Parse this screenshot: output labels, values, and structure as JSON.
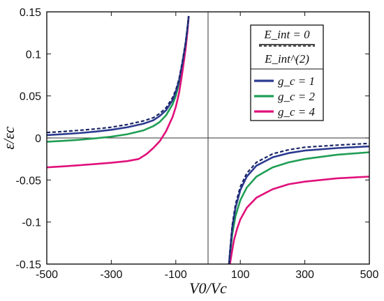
{
  "chart_data": {
    "type": "line",
    "xlabel": "V0/Vc",
    "ylabel": "ε/εc",
    "xlim": [
      -500,
      500
    ],
    "ylim": [
      -0.15,
      0.15
    ],
    "xticks": [
      -500,
      -300,
      -100,
      100,
      300,
      500
    ],
    "xtick_labels": [
      "-500",
      "-300",
      "-100",
      "100",
      "300",
      "500"
    ],
    "yticks": [
      -0.15,
      -0.1,
      -0.05,
      0,
      0.05,
      0.1,
      0.15
    ],
    "ytick_labels": [
      "-0.15",
      "-0.1",
      "-0.05",
      "0",
      "0.05",
      "0.1",
      "0.15"
    ],
    "grid": false,
    "zero_lines": true,
    "legend": {
      "placement": "top-right",
      "header": [
        {
          "style": "solid",
          "color": "#111111",
          "label": "E_int = 0"
        },
        {
          "style": "dashed",
          "color": "#111111",
          "label": "E_int^(2)"
        }
      ]
    },
    "series": [
      {
        "name": "g_c = 1",
        "color": "#2b3a8f",
        "style": "solid",
        "left": [
          [
            -500,
            0.0034
          ],
          [
            -450,
            0.0045
          ],
          [
            -400,
            0.0058
          ],
          [
            -350,
            0.0075
          ],
          [
            -300,
            0.0097
          ],
          [
            -250,
            0.0128
          ],
          [
            -200,
            0.017
          ],
          [
            -170,
            0.021
          ],
          [
            -150,
            0.026
          ],
          [
            -130,
            0.033
          ],
          [
            -110,
            0.045
          ],
          [
            -100,
            0.055
          ],
          [
            -90,
            0.068
          ],
          [
            -80,
            0.088
          ],
          [
            -70,
            0.112
          ],
          [
            -64,
            0.13
          ],
          [
            -60,
            0.145
          ]
        ],
        "right": [
          [
            65,
            -0.15
          ],
          [
            68,
            -0.136
          ],
          [
            75,
            -0.107
          ],
          [
            85,
            -0.083
          ],
          [
            100,
            -0.062
          ],
          [
            120,
            -0.046
          ],
          [
            150,
            -0.033
          ],
          [
            200,
            -0.023
          ],
          [
            250,
            -0.018
          ],
          [
            300,
            -0.015
          ],
          [
            400,
            -0.012
          ],
          [
            500,
            -0.01
          ]
        ]
      },
      {
        "name": "",
        "color": "#2b3a8f",
        "style": "dashed",
        "left": [
          [
            -500,
            0.0065
          ],
          [
            -450,
            0.0076
          ],
          [
            -400,
            0.009
          ],
          [
            -350,
            0.0107
          ],
          [
            -300,
            0.0128
          ],
          [
            -250,
            0.016
          ],
          [
            -200,
            0.0203
          ],
          [
            -170,
            0.024
          ],
          [
            -150,
            0.029
          ],
          [
            -130,
            0.036
          ],
          [
            -110,
            0.048
          ],
          [
            -100,
            0.057
          ],
          [
            -90,
            0.07
          ],
          [
            -80,
            0.09
          ],
          [
            -70,
            0.113
          ],
          [
            -64,
            0.131
          ],
          [
            -60,
            0.145
          ]
        ],
        "right": [
          [
            65,
            -0.15
          ],
          [
            68,
            -0.134
          ],
          [
            75,
            -0.104
          ],
          [
            85,
            -0.079
          ],
          [
            100,
            -0.058
          ],
          [
            120,
            -0.042
          ],
          [
            150,
            -0.029
          ],
          [
            200,
            -0.019
          ],
          [
            250,
            -0.014
          ],
          [
            300,
            -0.011
          ],
          [
            400,
            -0.0085
          ],
          [
            500,
            -0.0065
          ]
        ]
      },
      {
        "name": "g_c = 2",
        "color": "#1f9e55",
        "style": "solid",
        "left": [
          [
            -500,
            -0.0045
          ],
          [
            -450,
            -0.0035
          ],
          [
            -400,
            -0.0022
          ],
          [
            -350,
            -0.0005
          ],
          [
            -300,
            0.0015
          ],
          [
            -250,
            0.0045
          ],
          [
            -200,
            0.009
          ],
          [
            -170,
            0.014
          ],
          [
            -150,
            0.019
          ],
          [
            -130,
            0.027
          ],
          [
            -110,
            0.04
          ],
          [
            -100,
            0.05
          ],
          [
            -90,
            0.065
          ],
          [
            -80,
            0.086
          ],
          [
            -70,
            0.11
          ],
          [
            -64,
            0.129
          ],
          [
            -60,
            0.145
          ]
        ],
        "right": [
          [
            65,
            -0.15
          ],
          [
            68,
            -0.14
          ],
          [
            75,
            -0.115
          ],
          [
            85,
            -0.093
          ],
          [
            100,
            -0.074
          ],
          [
            120,
            -0.059
          ],
          [
            150,
            -0.046
          ],
          [
            200,
            -0.035
          ],
          [
            250,
            -0.029
          ],
          [
            300,
            -0.025
          ],
          [
            400,
            -0.02
          ],
          [
            500,
            -0.017
          ]
        ]
      },
      {
        "name": "g_c = 4",
        "color": "#e0107a",
        "style": "solid",
        "left": [
          [
            -500,
            -0.035
          ],
          [
            -450,
            -0.0338
          ],
          [
            -400,
            -0.0325
          ],
          [
            -350,
            -0.031
          ],
          [
            -300,
            -0.0295
          ],
          [
            -250,
            -0.0275
          ],
          [
            -215,
            -0.025
          ],
          [
            -190,
            -0.019
          ],
          [
            -170,
            -0.012
          ],
          [
            -150,
            -0.004
          ],
          [
            -130,
            0.008
          ],
          [
            -110,
            0.025
          ],
          [
            -100,
            0.037
          ],
          [
            -90,
            0.053
          ],
          [
            -80,
            0.077
          ],
          [
            -70,
            0.105
          ],
          [
            -64,
            0.126
          ],
          [
            -60,
            0.145
          ]
        ],
        "right": [
          [
            68,
            -0.15
          ],
          [
            72,
            -0.14
          ],
          [
            80,
            -0.122
          ],
          [
            90,
            -0.108
          ],
          [
            100,
            -0.097
          ],
          [
            120,
            -0.083
          ],
          [
            150,
            -0.071
          ],
          [
            200,
            -0.061
          ],
          [
            250,
            -0.055
          ],
          [
            300,
            -0.052
          ],
          [
            400,
            -0.048
          ],
          [
            500,
            -0.046
          ]
        ]
      }
    ]
  }
}
